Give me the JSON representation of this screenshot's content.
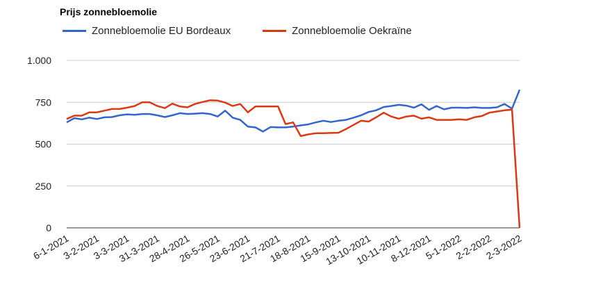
{
  "chart_data": {
    "type": "line",
    "title": "Prijs zonnebloemolie",
    "xlabel": "",
    "ylabel": "",
    "ylim": [
      0,
      1000
    ],
    "y_ticks": [
      0,
      250,
      500,
      750,
      1000
    ],
    "y_tick_labels": [
      "0",
      "250",
      "500",
      "750",
      "1.000"
    ],
    "grid": "horizontal",
    "legend_position": "top",
    "x_tick_labels": [
      "6-1-2021",
      "3-2-2021",
      "3-3-2021",
      "31-3-2021",
      "28-4-2021",
      "26-5-2021",
      "23-6-2021",
      "21-7-2021",
      "18-8-2021",
      "15-9-2021",
      "13-10-2021",
      "10-11-2021",
      "8-12-2021",
      "5-1-2022",
      "2-2-2022",
      "2-3-2022"
    ],
    "x": [
      "6-1-2021",
      "13-1-2021",
      "20-1-2021",
      "27-1-2021",
      "3-2-2021",
      "10-2-2021",
      "17-2-2021",
      "24-2-2021",
      "3-3-2021",
      "10-3-2021",
      "17-3-2021",
      "24-3-2021",
      "31-3-2021",
      "7-4-2021",
      "14-4-2021",
      "21-4-2021",
      "28-4-2021",
      "5-5-2021",
      "12-5-2021",
      "19-5-2021",
      "26-5-2021",
      "2-6-2021",
      "9-6-2021",
      "16-6-2021",
      "23-6-2021",
      "30-6-2021",
      "7-7-2021",
      "14-7-2021",
      "21-7-2021",
      "28-7-2021",
      "4-8-2021",
      "11-8-2021",
      "18-8-2021",
      "25-8-2021",
      "1-9-2021",
      "8-9-2021",
      "15-9-2021",
      "22-9-2021",
      "29-9-2021",
      "6-10-2021",
      "13-10-2021",
      "20-10-2021",
      "27-10-2021",
      "3-11-2021",
      "10-11-2021",
      "17-11-2021",
      "24-11-2021",
      "1-12-2021",
      "8-12-2021",
      "15-12-2021",
      "22-12-2021",
      "29-12-2021",
      "5-1-2022",
      "12-1-2022",
      "19-1-2022",
      "26-1-2022",
      "2-2-2022",
      "9-2-2022",
      "16-2-2022",
      "23-2-2022",
      "2-3-2022"
    ],
    "series": [
      {
        "name": "Zonnebloemolie EU Bordeaux",
        "color": "#3366cc",
        "values": [
          630,
          655,
          648,
          658,
          650,
          660,
          662,
          672,
          678,
          675,
          680,
          680,
          672,
          662,
          672,
          685,
          680,
          682,
          685,
          680,
          665,
          700,
          658,
          645,
          605,
          600,
          575,
          602,
          600,
          600,
          605,
          612,
          618,
          630,
          640,
          632,
          640,
          645,
          658,
          672,
          692,
          702,
          722,
          728,
          735,
          730,
          718,
          738,
          705,
          728,
          708,
          718,
          718,
          716,
          720,
          716,
          716,
          720,
          740,
          712,
          825
        ]
      },
      {
        "name": "Zonnebloemolie Oekraïne",
        "color": "#dc3912",
        "values": [
          650,
          670,
          670,
          690,
          690,
          700,
          710,
          710,
          718,
          728,
          750,
          750,
          728,
          715,
          742,
          725,
          720,
          740,
          752,
          762,
          760,
          748,
          728,
          740,
          690,
          725,
          725,
          725,
          725,
          620,
          630,
          548,
          558,
          565,
          565,
          567,
          568,
          590,
          615,
          640,
          635,
          660,
          688,
          665,
          652,
          665,
          670,
          652,
          660,
          645,
          645,
          645,
          648,
          645,
          660,
          668,
          688,
          695,
          702,
          706,
          0
        ]
      }
    ]
  }
}
